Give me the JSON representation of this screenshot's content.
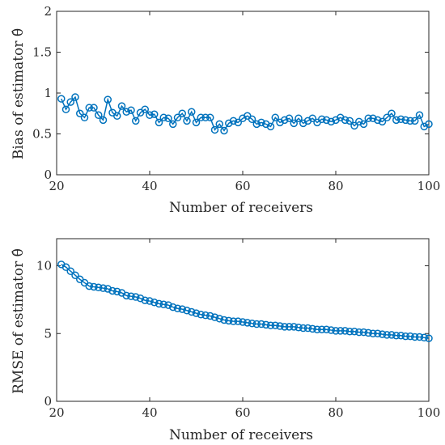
{
  "chart_data": [
    {
      "type": "line",
      "xlabel": "Number of receivers",
      "ylabel": "Bias of estimator θ̂",
      "xlim": [
        20,
        100
      ],
      "ylim": [
        0,
        2
      ],
      "xticks": [
        20,
        40,
        60,
        80,
        100
      ],
      "yticks": [
        0,
        0.5,
        1,
        1.5,
        2
      ],
      "xtick_labels": [
        "20",
        "40",
        "60",
        "80",
        "100"
      ],
      "ytick_labels": [
        "0",
        "0.5",
        "1",
        "1.5",
        "2"
      ],
      "grid": false,
      "marker": "circle",
      "color": "#0072BD",
      "series": [
        {
          "x": [
            21,
            22,
            23,
            24,
            25,
            26,
            27,
            28,
            29,
            30,
            31,
            32,
            33,
            34,
            35,
            36,
            37,
            38,
            39,
            40,
            41,
            42,
            43,
            44,
            45,
            46,
            47,
            48,
            49,
            50,
            51,
            52,
            53,
            54,
            55,
            56,
            57,
            58,
            59,
            60,
            61,
            62,
            63,
            64,
            65,
            66,
            67,
            68,
            69,
            70,
            71,
            72,
            73,
            74,
            75,
            76,
            77,
            78,
            79,
            80,
            81,
            82,
            83,
            84,
            85,
            86,
            87,
            88,
            89,
            90,
            91,
            92,
            93,
            94,
            95,
            96,
            97,
            98,
            99,
            100
          ],
          "values": [
            0.93,
            0.8,
            0.89,
            0.95,
            0.75,
            0.7,
            0.82,
            0.82,
            0.73,
            0.67,
            0.92,
            0.76,
            0.72,
            0.84,
            0.77,
            0.79,
            0.66,
            0.76,
            0.8,
            0.73,
            0.74,
            0.64,
            0.7,
            0.69,
            0.62,
            0.7,
            0.75,
            0.66,
            0.77,
            0.64,
            0.7,
            0.7,
            0.7,
            0.55,
            0.62,
            0.54,
            0.63,
            0.66,
            0.64,
            0.69,
            0.72,
            0.68,
            0.62,
            0.64,
            0.62,
            0.59,
            0.7,
            0.64,
            0.67,
            0.69,
            0.63,
            0.69,
            0.63,
            0.66,
            0.69,
            0.64,
            0.68,
            0.67,
            0.65,
            0.67,
            0.7,
            0.67,
            0.66,
            0.6,
            0.65,
            0.62,
            0.69,
            0.69,
            0.67,
            0.65,
            0.7,
            0.75,
            0.67,
            0.68,
            0.67,
            0.66,
            0.66,
            0.73,
            0.59,
            0.62
          ]
        }
      ]
    },
    {
      "type": "line",
      "xlabel": "Number of receivers",
      "ylabel": "RMSE of estimator θ̂",
      "xlim": [
        20,
        100
      ],
      "ylim": [
        0,
        12
      ],
      "xticks": [
        20,
        40,
        60,
        80,
        100
      ],
      "yticks": [
        0,
        5,
        10
      ],
      "xtick_labels": [
        "20",
        "40",
        "60",
        "80",
        "100"
      ],
      "ytick_labels": [
        "0",
        "5",
        "10"
      ],
      "grid": false,
      "marker": "circle",
      "color": "#0072BD",
      "series": [
        {
          "x": [
            21,
            22,
            23,
            24,
            25,
            26,
            27,
            28,
            29,
            30,
            31,
            32,
            33,
            34,
            35,
            36,
            37,
            38,
            39,
            40,
            41,
            42,
            43,
            44,
            45,
            46,
            47,
            48,
            49,
            50,
            51,
            52,
            53,
            54,
            55,
            56,
            57,
            58,
            59,
            60,
            61,
            62,
            63,
            64,
            65,
            66,
            67,
            68,
            69,
            70,
            71,
            72,
            73,
            74,
            75,
            76,
            77,
            78,
            79,
            80,
            81,
            82,
            83,
            84,
            85,
            86,
            87,
            88,
            89,
            90,
            91,
            92,
            93,
            94,
            95,
            96,
            97,
            98,
            99,
            100
          ],
          "values": [
            10.1,
            9.9,
            9.6,
            9.3,
            9.0,
            8.75,
            8.5,
            8.45,
            8.4,
            8.35,
            8.3,
            8.15,
            8.1,
            8.0,
            7.8,
            7.75,
            7.7,
            7.6,
            7.45,
            7.4,
            7.3,
            7.2,
            7.15,
            7.1,
            6.95,
            6.85,
            6.8,
            6.7,
            6.6,
            6.5,
            6.4,
            6.35,
            6.3,
            6.2,
            6.1,
            6.0,
            5.95,
            5.9,
            5.9,
            5.85,
            5.8,
            5.75,
            5.7,
            5.7,
            5.65,
            5.6,
            5.6,
            5.55,
            5.5,
            5.5,
            5.5,
            5.45,
            5.4,
            5.4,
            5.35,
            5.3,
            5.3,
            5.3,
            5.25,
            5.2,
            5.2,
            5.2,
            5.15,
            5.15,
            5.1,
            5.1,
            5.05,
            5.0,
            5.0,
            4.95,
            4.9,
            4.9,
            4.85,
            4.85,
            4.8,
            4.8,
            4.75,
            4.75,
            4.7,
            4.65
          ]
        }
      ]
    }
  ]
}
